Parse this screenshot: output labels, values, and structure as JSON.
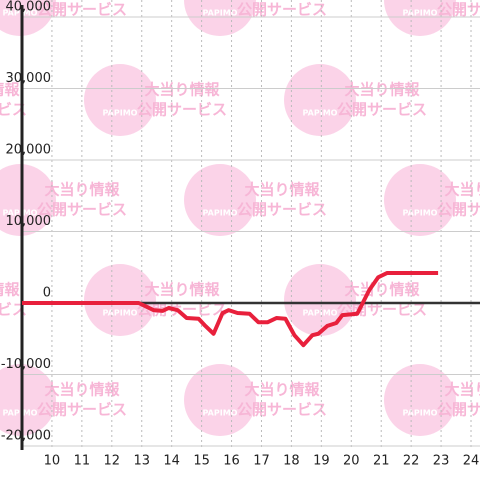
{
  "chart_data": {
    "type": "line",
    "watermark": {
      "brand": "PAPIMO",
      "line1": "大当り情報",
      "line2": "公開サービス"
    },
    "x": [
      9,
      12.9,
      13.4,
      13.7,
      13.9,
      14.2,
      14.5,
      14.9,
      15.1,
      15.4,
      15.7,
      15.9,
      16.2,
      16.6,
      16.9,
      17.2,
      17.5,
      17.8,
      18.1,
      18.4,
      18.7,
      18.9,
      19.2,
      19.5,
      19.7,
      20.2,
      20.6,
      20.9,
      21.2,
      22.9
    ],
    "series": [
      {
        "color": "#e8203c",
        "values": [
          0,
          0,
          -1000,
          -1100,
          -700,
          -1000,
          -2100,
          -2200,
          -3100,
          -4300,
          -1400,
          -1000,
          -1400,
          -1500,
          -2700,
          -2700,
          -2100,
          -2200,
          -4500,
          -5900,
          -4500,
          -4300,
          -3200,
          -2800,
          -1700,
          -1500,
          1800,
          3600,
          4200,
          4200
        ]
      }
    ],
    "xlim": [
      9,
      24.3
    ],
    "ylim": [
      -20500,
      40500
    ],
    "xticks": [
      10,
      11,
      12,
      13,
      14,
      15,
      16,
      17,
      18,
      19,
      20,
      21,
      22,
      23,
      24
    ],
    "yticks": [
      {
        "value": 40000,
        "label": "40,000"
      },
      {
        "value": 30000,
        "label": "30,000"
      },
      {
        "value": 20000,
        "label": "20,000"
      },
      {
        "value": 10000,
        "label": "10,000"
      },
      0,
      {
        "value": -10000,
        "label": "-10,000"
      },
      {
        "value": -20000,
        "label": "-20,000"
      }
    ],
    "grid": true
  }
}
